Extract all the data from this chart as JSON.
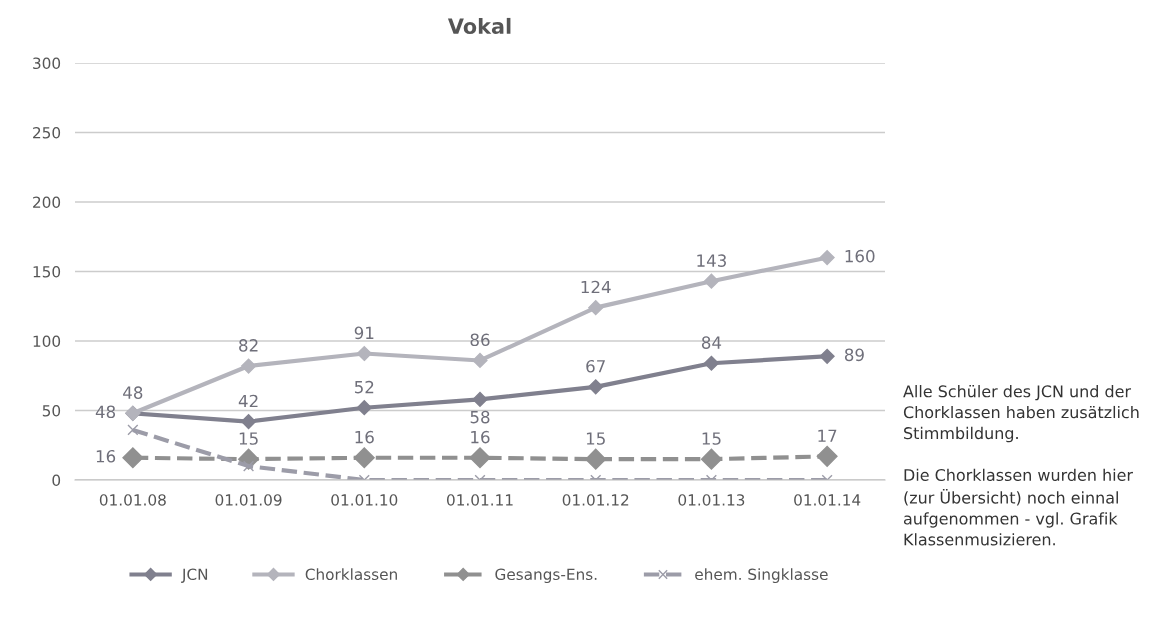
{
  "chart_data": {
    "type": "line",
    "title": "Vokal",
    "categories": [
      "01.01.08",
      "01.01.09",
      "01.01.10",
      "01.01.11",
      "01.01.12",
      "01.01.13",
      "01.01.14"
    ],
    "series": [
      {
        "name": "JCN",
        "color": "#80808e",
        "values": [
          48,
          42,
          52,
          58,
          67,
          84,
          89
        ],
        "value_labels": [
          "48",
          "42",
          "52",
          "58",
          "67",
          "84",
          "89"
        ],
        "marker": "diamond",
        "line_style": "solid"
      },
      {
        "name": "Chorklassen",
        "color": "#b4b4bc",
        "values": [
          48,
          82,
          91,
          86,
          124,
          143,
          160
        ],
        "value_labels": [
          "48",
          "82",
          "91",
          "86",
          "124",
          "143",
          "160"
        ],
        "marker": "diamond",
        "line_style": "solid"
      },
      {
        "name": "Gesangs-Ens.",
        "color": "#909090",
        "values": [
          16,
          15,
          16,
          16,
          15,
          15,
          17
        ],
        "value_labels": [
          "16",
          "15",
          "16",
          "16",
          "15",
          "15",
          "17"
        ],
        "marker": "diamond",
        "line_style": "dashed"
      },
      {
        "name": "ehem. Singklasse",
        "color": "#9c9ca8",
        "values": [
          36,
          10,
          0,
          0,
          0,
          0,
          0
        ],
        "marker": "cross",
        "line_style": "dashed"
      }
    ],
    "ylim": [
      0,
      300
    ],
    "yticks": [
      0,
      50,
      100,
      150,
      200,
      250,
      300
    ],
    "grid": "y",
    "legend": "bottom",
    "annotations": [
      "Alle Schüler des JCN und der Chorklassen haben zusätzlich Stimmbildung.\n\nDie Chorklassen wurden hier (zur Übersicht) noch einnal aufgenommen - vgl. Grafik Klassenmusizieren."
    ]
  }
}
